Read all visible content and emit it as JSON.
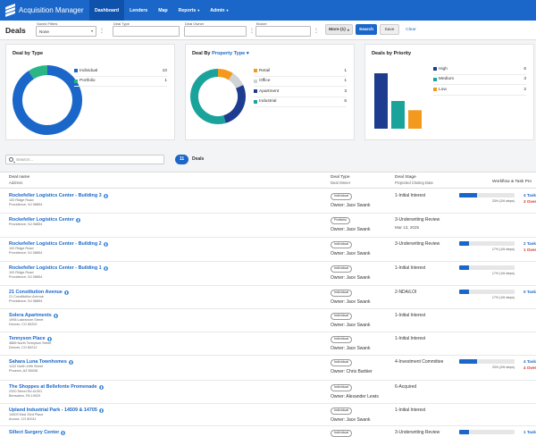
{
  "app": {
    "title": "Acquisition Manager"
  },
  "nav": [
    {
      "label": "Dashboard",
      "active": true,
      "caret": false
    },
    {
      "label": "Lenders",
      "active": false,
      "caret": false
    },
    {
      "label": "Map",
      "active": false,
      "caret": false
    },
    {
      "label": "Reports",
      "active": false,
      "caret": true
    },
    {
      "label": "Admin",
      "active": false,
      "caret": true
    }
  ],
  "page": {
    "title": "Deals"
  },
  "filters": {
    "saved": {
      "label": "Saved Filters",
      "value": "None"
    },
    "deal_type": {
      "label": "Deal Type",
      "value": ""
    },
    "deal_owner": {
      "label": "Deal Owner",
      "value": ""
    },
    "broker": {
      "label": "Broker",
      "value": ""
    },
    "more_label": "More (1)",
    "search_label": "Search",
    "save_label": "Save",
    "clear_label": "Clear"
  },
  "cards": {
    "by_type": {
      "title": "Deal by Type",
      "items": [
        {
          "label": "Individual",
          "count": 10,
          "color": "#1b67c9"
        },
        {
          "label": "Portfolio",
          "count": 1,
          "color": "#2bb585"
        }
      ]
    },
    "by_property": {
      "title_prefix": "Deal By",
      "title_link": "Property Type",
      "items": [
        {
          "label": "Retail",
          "count": 1,
          "color": "#f39a1e"
        },
        {
          "label": "Office",
          "count": 1,
          "color": "#cfd2d6"
        },
        {
          "label": "Apartment",
          "count": 3,
          "color": "#1d3c8f"
        },
        {
          "label": "Industrial",
          "count": 6,
          "color": "#1aa39a"
        }
      ]
    },
    "by_priority": {
      "title": "Deals by Priority",
      "items": [
        {
          "label": "High",
          "count": 6,
          "color": "#1d3c8f"
        },
        {
          "label": "Medium",
          "count": 3,
          "color": "#1aa39a"
        },
        {
          "label": "Low",
          "count": 2,
          "color": "#f39a1e"
        }
      ]
    }
  },
  "search": {
    "placeholder": "Search..."
  },
  "results": {
    "count": "11",
    "label": "Deals"
  },
  "table": {
    "headers": {
      "name": "Deal name",
      "name_sub": "Address",
      "type": "Deal Type",
      "type_sub": "Deal Owner",
      "stage": "Deal Stage",
      "stage_sub": "Projected Closing Date",
      "workflow": "Workflow & Task Pro"
    },
    "rows": [
      {
        "name": "Rockefeller Logistics Center - Building 3",
        "addr1": "100 Ridge Road",
        "addr2": "Providence, NJ 08854",
        "type": "Individual",
        "owner": "Owner: Jace Swank",
        "stage": "1-Initial Interest",
        "date": "",
        "progress": 0.33,
        "progress_text": "33% (2/6 steps)",
        "tasks": "4 Tasks",
        "overdue": "3 Overdue"
      },
      {
        "name": "Rockefeller Logistics Center",
        "addr1": "Providence, NJ 08854",
        "addr2": "",
        "type": "Portfolio",
        "owner": "Owner: Jace Swank",
        "stage": "3-Underwriting Review",
        "date": "Mar 13, 2025",
        "progress": null,
        "progress_text": "",
        "tasks": "",
        "overdue": ""
      },
      {
        "name": "Rockefeller Logistics Center - Building 2",
        "addr1": "100 Ridge Road",
        "addr2": "Providence, NJ 08854",
        "type": "Individual",
        "owner": "Owner: Jace Swank",
        "stage": "3-Underwriting Review",
        "date": "",
        "progress": 0.17,
        "progress_text": "17% (1/6 steps)",
        "tasks": "2 Tasks",
        "overdue": "1 Overdue"
      },
      {
        "name": "Rockefeller Logistics Center - Building 1",
        "addr1": "100 Ridge Road",
        "addr2": "Providence, NJ 08854",
        "type": "Individual",
        "owner": "Owner: Jace Swank",
        "stage": "1-Initial Interest",
        "date": "",
        "progress": 0.17,
        "progress_text": "17% (1/6 steps)",
        "tasks": "",
        "overdue": ""
      },
      {
        "name": "21 Constitution Avenue",
        "addr1": "21 Constitution Avenue",
        "addr2": "Providence, NJ 08854",
        "type": "Individual",
        "owner": "Owner: Jace Swank",
        "stage": "2-NDA/LOI",
        "date": "",
        "progress": 0.17,
        "progress_text": "17% (1/6 steps)",
        "tasks": "0 Tasks",
        "overdue": ""
      },
      {
        "name": "Solera Apartments",
        "addr1": "1998 Lakeshore Street",
        "addr2": "Denver, CO 80202",
        "type": "Individual",
        "owner": "Owner: Jace Swank",
        "stage": "1-Initial Interest",
        "date": "",
        "progress": null,
        "progress_text": "",
        "tasks": "",
        "overdue": ""
      },
      {
        "name": "Tennyson Place",
        "addr1": "3885 North Tennyson Street",
        "addr2": "Denver, CO 80212",
        "type": "Individual",
        "owner": "Owner: Jace Swank",
        "stage": "1-Initial Interest",
        "date": "",
        "progress": null,
        "progress_text": "",
        "tasks": "",
        "overdue": ""
      },
      {
        "name": "Sahara Luna Townhomes",
        "addr1": "1122 North 49th Street",
        "addr2": "Phoenix, AZ 85008",
        "type": "Individual",
        "owner": "Owner: Chris Barbier",
        "stage": "4-Investment Committee",
        "date": "",
        "progress": 0.33,
        "progress_text": "33% (2/6 steps)",
        "tasks": "4 Tasks",
        "overdue": "4 Overdue"
      },
      {
        "name": "The Shoppes at Bellefonte Promenade",
        "addr1": "2320 Street Rd #1001",
        "addr2": "Bensalem, PA 19020",
        "type": "Individual",
        "owner": "Owner: Alexander Lewis",
        "stage": "6-Acquired",
        "date": "",
        "progress": null,
        "progress_text": "",
        "tasks": "",
        "overdue": ""
      },
      {
        "name": "Upland Industrial Park - 14509 & 14705",
        "addr1": "14509 East 33rd Place",
        "addr2": "Aurora, CO 80011",
        "type": "Individual",
        "owner": "Owner: Jace Swank",
        "stage": "1-Initial Interest",
        "date": "",
        "progress": null,
        "progress_text": "",
        "tasks": "",
        "overdue": ""
      },
      {
        "name": "Sillect Surgery Center",
        "addr1": "",
        "addr2": "",
        "type": "Individual",
        "owner": "",
        "stage": "3-Underwriting Review",
        "date": "",
        "progress": 0.17,
        "progress_text": "",
        "tasks": "1 Task",
        "overdue": ""
      }
    ]
  }
}
